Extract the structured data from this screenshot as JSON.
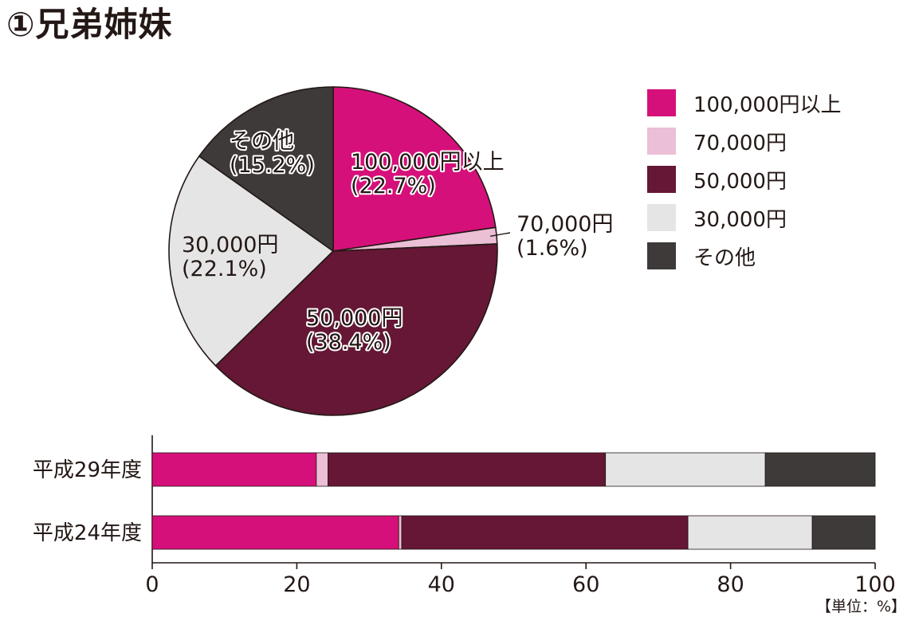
{
  "title": "①兄弟姉妹",
  "unit": "【単位：%】",
  "colors": {
    "100,000円以上": "#d6107a",
    "70,000円": "#ebbfd6",
    "50,000円": "#651735",
    "30,000円": "#e5e5e5",
    "その他": "#3d3a39"
  },
  "chart_data": [
    {
      "type": "pie",
      "slices": [
        {
          "label": "100,000円以上",
          "value": 22.7,
          "display": "(22.7%)"
        },
        {
          "label": "70,000円",
          "value": 1.6,
          "display": "(1.6%)"
        },
        {
          "label": "50,000円",
          "value": 38.4,
          "display": "(38.4%)"
        },
        {
          "label": "30,000円",
          "value": 22.1,
          "display": "(22.1%)"
        },
        {
          "label": "その他",
          "value": 15.2,
          "display": "(15.2%)"
        }
      ],
      "legend": {
        "position": "right",
        "entries": [
          "100,000円以上",
          "70,000円",
          "50,000円",
          "30,000円",
          "その他"
        ]
      }
    },
    {
      "type": "bar",
      "orientation": "horizontal",
      "stacked": true,
      "categories": [
        "平成29年度",
        "平成24年度"
      ],
      "series": [
        {
          "name": "100,000円以上",
          "values": [
            22.7,
            34.1
          ]
        },
        {
          "name": "70,000円",
          "values": [
            1.6,
            0.4
          ]
        },
        {
          "name": "50,000円",
          "values": [
            38.4,
            39.6
          ]
        },
        {
          "name": "30,000円",
          "values": [
            22.1,
            17.2
          ]
        },
        {
          "name": "その他",
          "values": [
            15.2,
            8.7
          ]
        }
      ],
      "xlim": [
        0,
        100
      ],
      "xticks": [
        0,
        20,
        40,
        60,
        80,
        100
      ],
      "grid": false
    }
  ]
}
